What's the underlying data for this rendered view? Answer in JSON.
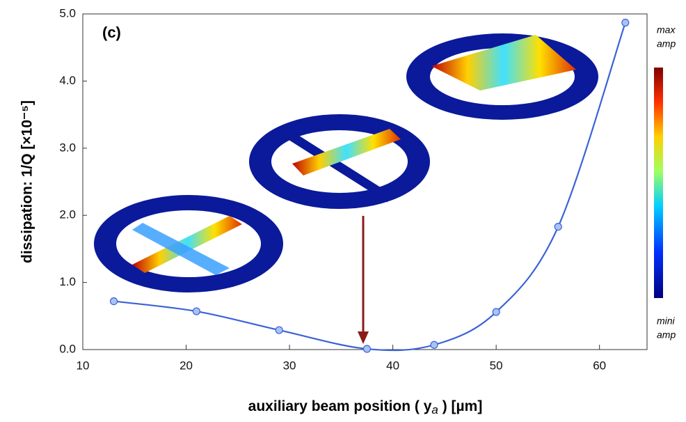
{
  "chart_data": {
    "type": "line",
    "panel_label": "(c)",
    "y_label": "dissipation: 1/Q [×10⁻⁵]",
    "x_label": "auxiliary beam position ( y",
    "x_label_sub": "a",
    "x_label_end": " ) [µm]",
    "colorbar_top": [
      "max",
      "amp"
    ],
    "colorbar_bottom": [
      "mini",
      "amp"
    ],
    "xlim": [
      10,
      64.6
    ],
    "ylim": [
      0,
      5
    ],
    "xticks": [
      10,
      20,
      30,
      40,
      50,
      60
    ],
    "yticks": [
      {
        "value": 0,
        "label": "0.0"
      },
      {
        "value": 1,
        "label": "1.0"
      },
      {
        "value": 2,
        "label": "2.0"
      },
      {
        "value": 3,
        "label": "3.0"
      },
      {
        "value": 4,
        "label": "4.0"
      },
      {
        "value": 5,
        "label": "5.0"
      }
    ],
    "series": [
      {
        "color": "#3a62d6",
        "x": [
          13,
          21,
          29,
          37.5,
          44,
          50,
          56,
          62.5
        ],
        "values": [
          0.72,
          0.57,
          0.29,
          0.01,
          0.07,
          0.56,
          1.83,
          4.87
        ]
      }
    ]
  }
}
